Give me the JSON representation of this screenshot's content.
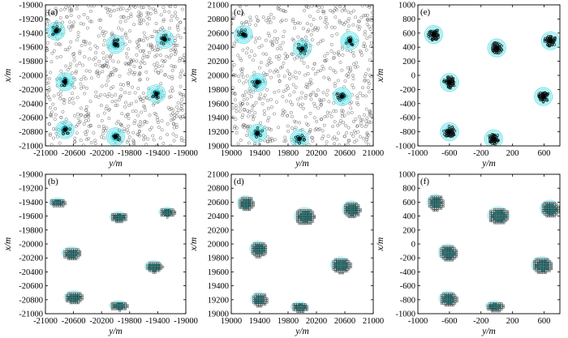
{
  "figure": {
    "colors": {
      "ring": "#6fe3ea",
      "core": "#2ec7cf",
      "sample_stroke": "#555555",
      "grid_cell_stroke": "#2b2b2b",
      "grid_cell_fill": "#1ba6a8",
      "center": "#000000"
    }
  },
  "chart_data": [
    {
      "panel": "(a)",
      "type": "scatter",
      "xlabel": "y/m",
      "ylabel": "x/m",
      "xlim": [
        -21000,
        -19000
      ],
      "ylim": [
        -21000,
        -19000
      ],
      "xticks": [
        -21000,
        -20600,
        -20200,
        -19800,
        -19400,
        -19000
      ],
      "xtick_labels": [
        "-21000",
        "-20600",
        "-20200",
        "-19800",
        "-19400",
        "-19000"
      ],
      "yticks": [
        -19000,
        -19200,
        -19400,
        -19600,
        -19800,
        -20000,
        -20200,
        -20400,
        -20600,
        -20800,
        -21000
      ],
      "ytick_labels": [
        "-19000",
        "-19200",
        "-19400",
        "-19600",
        "-19800",
        "-20000",
        "-20200",
        "-20400",
        "-20600",
        "-20800",
        "-21000"
      ],
      "centers": [
        [
          -20850,
          -19370
        ],
        [
          -20000,
          -19560
        ],
        [
          -19300,
          -19490
        ],
        [
          -20720,
          -20090
        ],
        [
          -19420,
          -20260
        ],
        [
          -20720,
          -20770
        ],
        [
          -20000,
          -20870
        ]
      ],
      "bodies": [],
      "random_samples": 700,
      "clustered_samples": 12
    },
    {
      "panel": "(b)",
      "type": "scatter",
      "xlabel": "y/m",
      "ylabel": "x/m",
      "xlim": [
        -21000,
        -19000
      ],
      "ylim": [
        -21000,
        -19000
      ],
      "xticks": [
        -21000,
        -20600,
        -20200,
        -19800,
        -19400,
        -19000
      ],
      "xtick_labels": [
        "-21000",
        "-20600",
        "-20200",
        "-19800",
        "-19400",
        "-19000"
      ],
      "yticks": [
        -19000,
        -19200,
        -19400,
        -19600,
        -19800,
        -20000,
        -20200,
        -20400,
        -20600,
        -20800,
        -21000
      ],
      "ytick_labels": [
        "-19000",
        "-19200",
        "-19400",
        "-19600",
        "-19800",
        "-20000",
        "-20200",
        "-20400",
        "-20600",
        "-20800",
        "-21000"
      ],
      "centers": [],
      "bodies": [
        [
          -20830,
          -19400,
          240,
          130
        ],
        [
          -19960,
          -19610,
          250,
          150
        ],
        [
          -19270,
          -19540,
          230,
          140
        ],
        [
          -20630,
          -20130,
          270,
          180
        ],
        [
          -19460,
          -20320,
          250,
          170
        ],
        [
          -20600,
          -20760,
          270,
          180
        ],
        [
          -19960,
          -20880,
          260,
          140
        ]
      ],
      "random_samples": 0,
      "clustered_samples": 0
    },
    {
      "panel": "(c)",
      "type": "scatter",
      "xlabel": "y/m",
      "ylabel": "x/m",
      "xlim": [
        19000,
        21000
      ],
      "ylim": [
        19000,
        21000
      ],
      "xticks": [
        19000,
        19400,
        19800,
        20200,
        20600,
        21000
      ],
      "xtick_labels": [
        "19000",
        "19400",
        "19800",
        "20200",
        "20600",
        "21000"
      ],
      "yticks": [
        21000,
        20800,
        20600,
        20400,
        20200,
        20000,
        19800,
        19600,
        19400,
        19200,
        19000
      ],
      "ytick_labels": [
        "21000",
        "20800",
        "20600",
        "20400",
        "20200",
        "20000",
        "19800",
        "19600",
        "19400",
        "19200",
        "19000"
      ],
      "centers": [
        [
          19170,
          20580
        ],
        [
          20000,
          20380
        ],
        [
          20670,
          20490
        ],
        [
          19370,
          19900
        ],
        [
          20560,
          19700
        ],
        [
          19370,
          19180
        ],
        [
          19960,
          19100
        ]
      ],
      "bodies": [],
      "random_samples": 650,
      "clustered_samples": 12
    },
    {
      "panel": "(d)",
      "type": "scatter",
      "xlabel": "y/m",
      "ylabel": "x/m",
      "xlim": [
        19000,
        21000
      ],
      "ylim": [
        19000,
        21000
      ],
      "xticks": [
        19000,
        19400,
        19800,
        20200,
        20600,
        21000
      ],
      "xtick_labels": [
        "19000",
        "19400",
        "19800",
        "20200",
        "20600",
        "21000"
      ],
      "yticks": [
        21000,
        20800,
        20600,
        20400,
        20200,
        20000,
        19800,
        19600,
        19400,
        19200,
        19000
      ],
      "ytick_labels": [
        "21000",
        "20800",
        "20600",
        "20400",
        "20200",
        "20000",
        "19800",
        "19600",
        "19400",
        "19200",
        "19000"
      ],
      "centers": [],
      "bodies": [
        [
          19200,
          20590,
          230,
          210
        ],
        [
          20030,
          20400,
          280,
          250
        ],
        [
          20690,
          20500,
          250,
          240
        ],
        [
          19380,
          19930,
          240,
          230
        ],
        [
          20540,
          19700,
          280,
          230
        ],
        [
          19390,
          19210,
          230,
          200
        ],
        [
          19960,
          19100,
          240,
          150
        ]
      ],
      "random_samples": 0,
      "clustered_samples": 0
    },
    {
      "panel": "(e)",
      "type": "scatter",
      "xlabel": "y/m",
      "ylabel": "x/m",
      "xlim": [
        -1000,
        800
      ],
      "ylim": [
        -1000,
        1000
      ],
      "xticks": [
        -1000,
        -600,
        -200,
        200,
        600
      ],
      "xtick_labels": [
        "-1000",
        "-600",
        "-200",
        "200",
        "600"
      ],
      "yticks": [
        1000,
        800,
        600,
        400,
        200,
        0,
        -200,
        -400,
        -600,
        -800,
        -1000
      ],
      "ytick_labels": [
        "1000",
        "800",
        "600",
        "400",
        "200",
        "0",
        "-200",
        "-400",
        "-600",
        "-800",
        "-1000"
      ],
      "centers": [
        [
          -800,
          580
        ],
        [
          0,
          390
        ],
        [
          680,
          490
        ],
        [
          -600,
          -100
        ],
        [
          590,
          -300
        ],
        [
          -600,
          -800
        ],
        [
          -40,
          -900
        ]
      ],
      "bodies": [],
      "random_samples": 0,
      "clustered_samples": 60
    },
    {
      "panel": "(f)",
      "type": "scatter",
      "xlabel": "y/m",
      "ylabel": "x/m",
      "xlim": [
        -1000,
        800
      ],
      "ylim": [
        -1000,
        1000
      ],
      "xticks": [
        -1000,
        -600,
        -200,
        200,
        600
      ],
      "xtick_labels": [
        "-1000",
        "-600",
        "-200",
        "200",
        "600"
      ],
      "yticks": [
        1000,
        800,
        600,
        400,
        200,
        0,
        -200,
        -400,
        -600,
        -800,
        -1000
      ],
      "ytick_labels": [
        "1000",
        "800",
        "600",
        "400",
        "200",
        "0",
        "-200",
        "-400",
        "-600",
        "-800",
        "-1000"
      ],
      "centers": [],
      "bodies": [
        [
          -780,
          600,
          210,
          230
        ],
        [
          20,
          410,
          270,
          250
        ],
        [
          670,
          510,
          240,
          240
        ],
        [
          -620,
          -120,
          240,
          240
        ],
        [
          570,
          -300,
          260,
          240
        ],
        [
          -620,
          -780,
          230,
          210
        ],
        [
          -30,
          -890,
          230,
          150
        ]
      ],
      "random_samples": 0,
      "clustered_samples": 0
    }
  ]
}
